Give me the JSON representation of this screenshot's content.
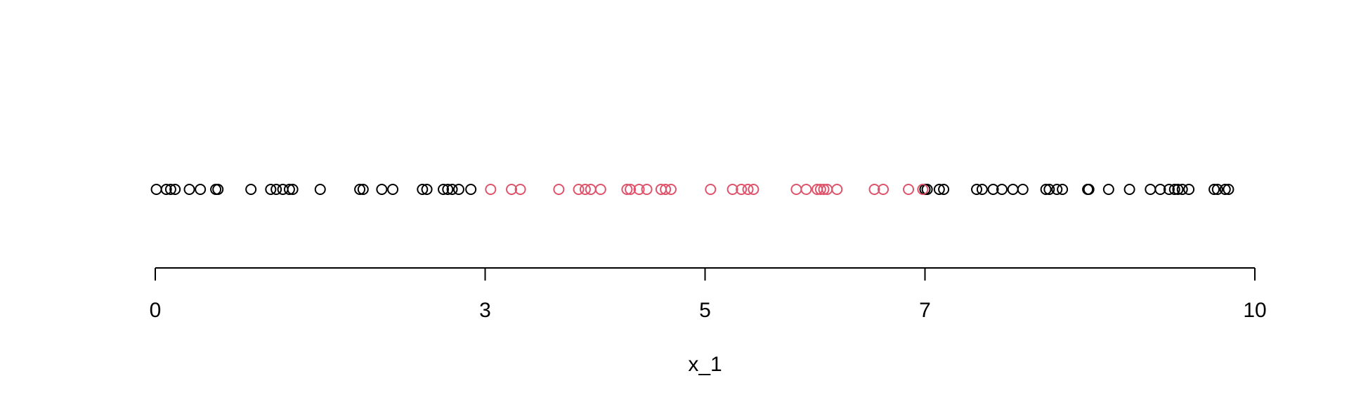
{
  "chart_data": {
    "type": "scatter",
    "title": "",
    "xlabel": "x_1",
    "ylabel": "",
    "xlim": [
      0,
      10
    ],
    "x_ticks": [
      {
        "value": 0,
        "label": "0"
      },
      {
        "value": 3,
        "label": "3"
      },
      {
        "value": 5,
        "label": "5"
      },
      {
        "value": 7,
        "label": "7"
      },
      {
        "value": 10,
        "label": "10"
      }
    ],
    "grid": false,
    "legend": "none",
    "colors": {
      "outside": "#000000",
      "inside": "#DF536B"
    },
    "series": [
      {
        "color": "#000000",
        "values": [
          0.01,
          0.1,
          0.14,
          0.18,
          0.31,
          0.41,
          0.55,
          0.57,
          0.87,
          1.05,
          1.1,
          1.16,
          1.22,
          1.25,
          1.5,
          1.86,
          1.89,
          2.06,
          2.16,
          2.43,
          2.47,
          2.62,
          2.66,
          2.7,
          2.76,
          2.87,
          7.0,
          7.02,
          7.13,
          7.17,
          7.47,
          7.52,
          7.62,
          7.7,
          7.8,
          7.89,
          8.1,
          8.13,
          8.2,
          8.25,
          8.48,
          8.49,
          8.67,
          8.86,
          9.05,
          9.14,
          9.22,
          9.27,
          9.3,
          9.34,
          9.4,
          9.63,
          9.66,
          9.73,
          9.76
        ]
      },
      {
        "color": "#DF536B",
        "values": [
          3.05,
          3.24,
          3.32,
          3.67,
          3.85,
          3.91,
          3.96,
          4.05,
          4.29,
          4.32,
          4.4,
          4.47,
          4.6,
          4.64,
          4.69,
          5.05,
          5.25,
          5.33,
          5.39,
          5.44,
          5.83,
          5.92,
          6.02,
          6.05,
          6.08,
          6.11,
          6.2,
          6.54,
          6.62,
          6.85,
          6.98
        ]
      }
    ]
  }
}
